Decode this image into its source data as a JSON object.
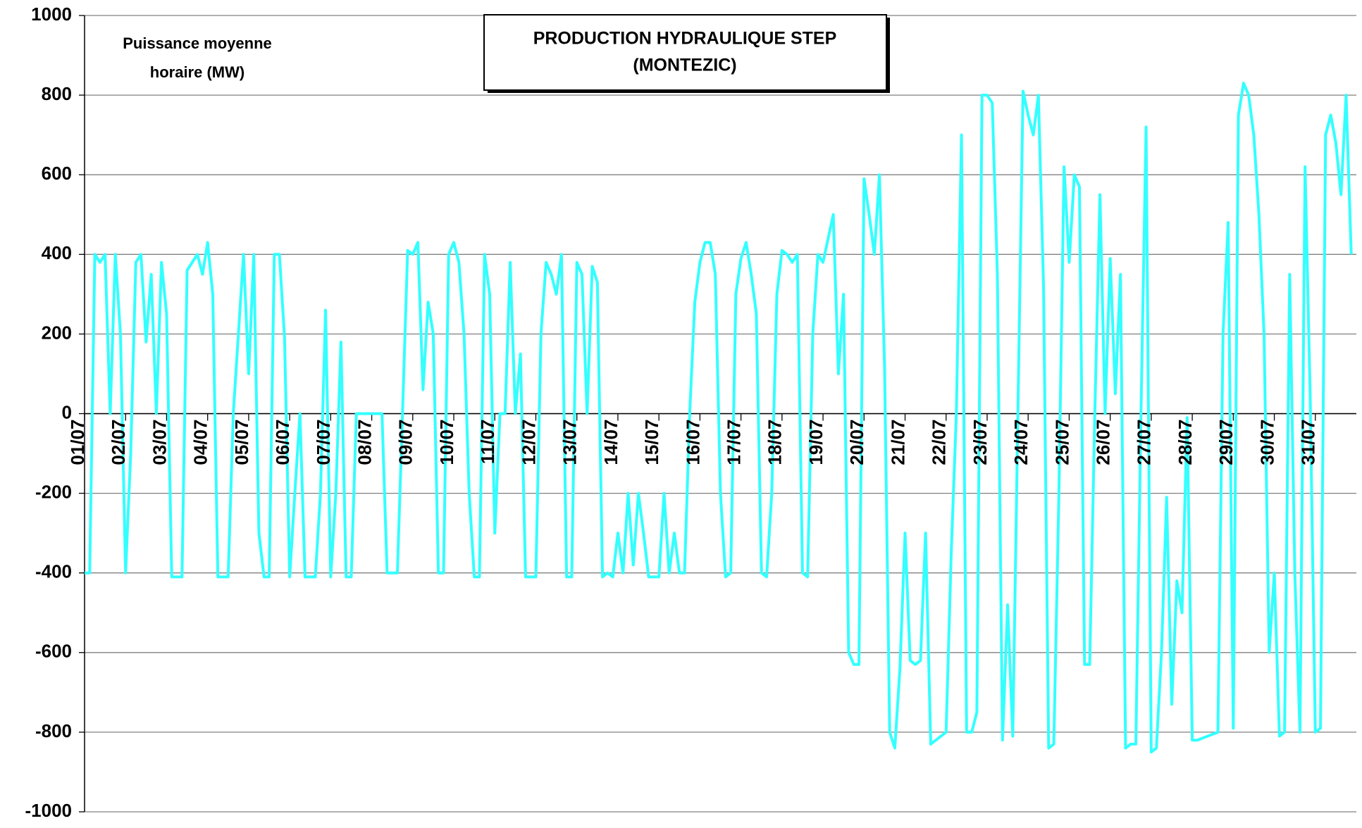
{
  "chart_data": {
    "type": "line",
    "title": [
      "PRODUCTION HYDRAULIQUE STEP",
      "(MONTEZIC)"
    ],
    "y_label": [
      "Puissance moyenne",
      "horaire (MW)"
    ],
    "xlim": [
      1,
      32
    ],
    "xticks": [
      {
        "value": 1,
        "label": "01/07"
      },
      {
        "value": 2,
        "label": "02/07"
      },
      {
        "value": 3,
        "label": "03/07"
      },
      {
        "value": 4,
        "label": "04/07"
      },
      {
        "value": 5,
        "label": "05/07"
      },
      {
        "value": 6,
        "label": "06/07"
      },
      {
        "value": 7,
        "label": "07/07"
      },
      {
        "value": 8,
        "label": "08/07"
      },
      {
        "value": 9,
        "label": "09/07"
      },
      {
        "value": 10,
        "label": "10/07"
      },
      {
        "value": 11,
        "label": "11/07"
      },
      {
        "value": 12,
        "label": "12/07"
      },
      {
        "value": 13,
        "label": "13/07"
      },
      {
        "value": 14,
        "label": "14/07"
      },
      {
        "value": 15,
        "label": "15/07"
      },
      {
        "value": 16,
        "label": "16/07"
      },
      {
        "value": 17,
        "label": "17/07"
      },
      {
        "value": 18,
        "label": "18/07"
      },
      {
        "value": 19,
        "label": "19/07"
      },
      {
        "value": 20,
        "label": "20/07"
      },
      {
        "value": 21,
        "label": "21/07"
      },
      {
        "value": 22,
        "label": "22/07"
      },
      {
        "value": 23,
        "label": "23/07"
      },
      {
        "value": 24,
        "label": "24/07"
      },
      {
        "value": 25,
        "label": "25/07"
      },
      {
        "value": 26,
        "label": "26/07"
      },
      {
        "value": 27,
        "label": "27/07"
      },
      {
        "value": 28,
        "label": "28/07"
      },
      {
        "value": 29,
        "label": "29/07"
      },
      {
        "value": 30,
        "label": "30/07"
      },
      {
        "value": 31,
        "label": "31/07"
      }
    ],
    "ylim": [
      -1000,
      1000
    ],
    "yticks": [
      -1000,
      -800,
      -600,
      -400,
      -200,
      0,
      200,
      400,
      600,
      800,
      1000
    ],
    "grid": true,
    "color": "#33ffff",
    "x": [
      1,
      1.125,
      1.25,
      1.375,
      1.5,
      1.625,
      1.75,
      1.875,
      2,
      2.125,
      2.25,
      2.375,
      2.5,
      2.625,
      2.75,
      2.875,
      3,
      3.125,
      3.25,
      3.375,
      3.5,
      3.625,
      3.75,
      3.875,
      4,
      4.125,
      4.25,
      4.375,
      4.5,
      4.625,
      4.75,
      4.875,
      5,
      5.125,
      5.25,
      5.375,
      5.5,
      5.625,
      5.75,
      5.875,
      6,
      6.125,
      6.25,
      6.375,
      6.5,
      6.625,
      6.75,
      6.875,
      7,
      7.125,
      7.25,
      7.375,
      7.5,
      7.625,
      7.75,
      7.875,
      8,
      8.125,
      8.25,
      8.375,
      8.5,
      8.625,
      8.75,
      8.875,
      9,
      9.125,
      9.25,
      9.375,
      9.5,
      9.625,
      9.75,
      9.875,
      10,
      10.125,
      10.25,
      10.375,
      10.5,
      10.625,
      10.75,
      10.875,
      11,
      11.125,
      11.25,
      11.375,
      11.5,
      11.625,
      11.75,
      11.875,
      12,
      12.125,
      12.25,
      12.375,
      12.5,
      12.625,
      12.75,
      12.875,
      13,
      13.125,
      13.25,
      13.375,
      13.5,
      13.625,
      13.75,
      13.875,
      14,
      14.125,
      14.25,
      14.375,
      14.5,
      14.625,
      14.75,
      14.875,
      15,
      15.125,
      15.25,
      15.375,
      15.5,
      15.625,
      15.75,
      15.875,
      16,
      16.125,
      16.25,
      16.375,
      16.5,
      16.625,
      16.75,
      16.875,
      17,
      17.125,
      17.25,
      17.375,
      17.5,
      17.625,
      17.75,
      17.875,
      18,
      18.125,
      18.25,
      18.375,
      18.5,
      18.625,
      18.75,
      18.875,
      19,
      19.125,
      19.25,
      19.375,
      19.5,
      19.625,
      19.75,
      19.875,
      20,
      20.125,
      20.25,
      20.375,
      20.5,
      20.625,
      20.75,
      20.875,
      21,
      21.125,
      21.25,
      21.375,
      21.5,
      21.625,
      21.75,
      21.875,
      22,
      22.125,
      22.25,
      22.375,
      22.5,
      22.625,
      22.75,
      22.875,
      23,
      23.125,
      23.25,
      23.375,
      23.5,
      23.625,
      23.75,
      23.875,
      24,
      24.125,
      24.25,
      24.375,
      24.5,
      24.625,
      24.75,
      24.875,
      25,
      25.125,
      25.25,
      25.375,
      25.5,
      25.625,
      25.75,
      25.875,
      26,
      26.125,
      26.25,
      26.375,
      26.5,
      26.625,
      26.75,
      26.875,
      27,
      27.125,
      27.25,
      27.375,
      27.5,
      27.625,
      27.75,
      27.875,
      28,
      28.125,
      28.25,
      28.375,
      28.5,
      28.625,
      28.75,
      28.875,
      29,
      29.125,
      29.25,
      29.375,
      29.5,
      29.625,
      29.75,
      29.875,
      30,
      30.125,
      30.25,
      30.375,
      30.5,
      30.625,
      30.75,
      30.875,
      31,
      31.125,
      31.25,
      31.375,
      31.5,
      31.625,
      31.75,
      31.875
    ],
    "values": [
      -400,
      -400,
      400,
      380,
      400,
      0,
      400,
      200,
      -400,
      -100,
      380,
      400,
      180,
      350,
      0,
      380,
      250,
      -410,
      -410,
      -410,
      360,
      380,
      400,
      350,
      430,
      300,
      -410,
      -410,
      -410,
      0,
      200,
      400,
      100,
      400,
      -300,
      -410,
      -410,
      400,
      400,
      190,
      -410,
      -200,
      0,
      -410,
      -410,
      -410,
      -200,
      260,
      -410,
      -200,
      180,
      -410,
      -410,
      0,
      0,
      0,
      0,
      0,
      0,
      -400,
      -400,
      -400,
      0,
      410,
      400,
      430,
      60,
      280,
      200,
      -400,
      -400,
      400,
      430,
      380,
      200,
      -200,
      -410,
      -410,
      400,
      300,
      -300,
      0,
      0,
      380,
      0,
      150,
      -410,
      -410,
      -410,
      200,
      380,
      350,
      300,
      400,
      -410,
      -410,
      380,
      350,
      0,
      370,
      330,
      -410,
      -400,
      -410,
      -300,
      -400,
      -200,
      -380,
      -200,
      -300,
      -410,
      -410,
      -410,
      -200,
      -400,
      -300,
      -400,
      -400,
      0,
      280,
      380,
      430,
      430,
      350,
      -200,
      -410,
      -400,
      300,
      390,
      430,
      350,
      250,
      -400,
      -410,
      -200,
      300,
      410,
      400,
      380,
      400,
      -400,
      -410,
      200,
      400,
      380,
      440,
      500,
      100,
      300,
      -600,
      -630,
      -630,
      590,
      500,
      400,
      600,
      120,
      -800,
      -840,
      -640,
      -300,
      -620,
      -630,
      -620,
      -300,
      -830,
      -820,
      -810,
      -800,
      -350,
      0,
      700,
      -800,
      -800,
      -750,
      800,
      800,
      780,
      350,
      -820,
      -480,
      -810,
      0,
      810,
      750,
      700,
      800,
      320,
      -840,
      -830,
      -200,
      620,
      380,
      600,
      570,
      -630,
      -630,
      0,
      550,
      0,
      390,
      50,
      350,
      -840,
      -830,
      -830,
      0,
      720,
      -850,
      -840,
      -600,
      -210,
      -730,
      -420,
      -500,
      -10,
      -820,
      -820,
      -815,
      -810,
      -805,
      -800,
      200,
      480,
      -790,
      750,
      830,
      800,
      700,
      500,
      200,
      -600,
      -400,
      -810,
      -800,
      350,
      -400,
      -800,
      620,
      40,
      -800,
      -790,
      700,
      750,
      680,
      550,
      800,
      400
    ]
  }
}
